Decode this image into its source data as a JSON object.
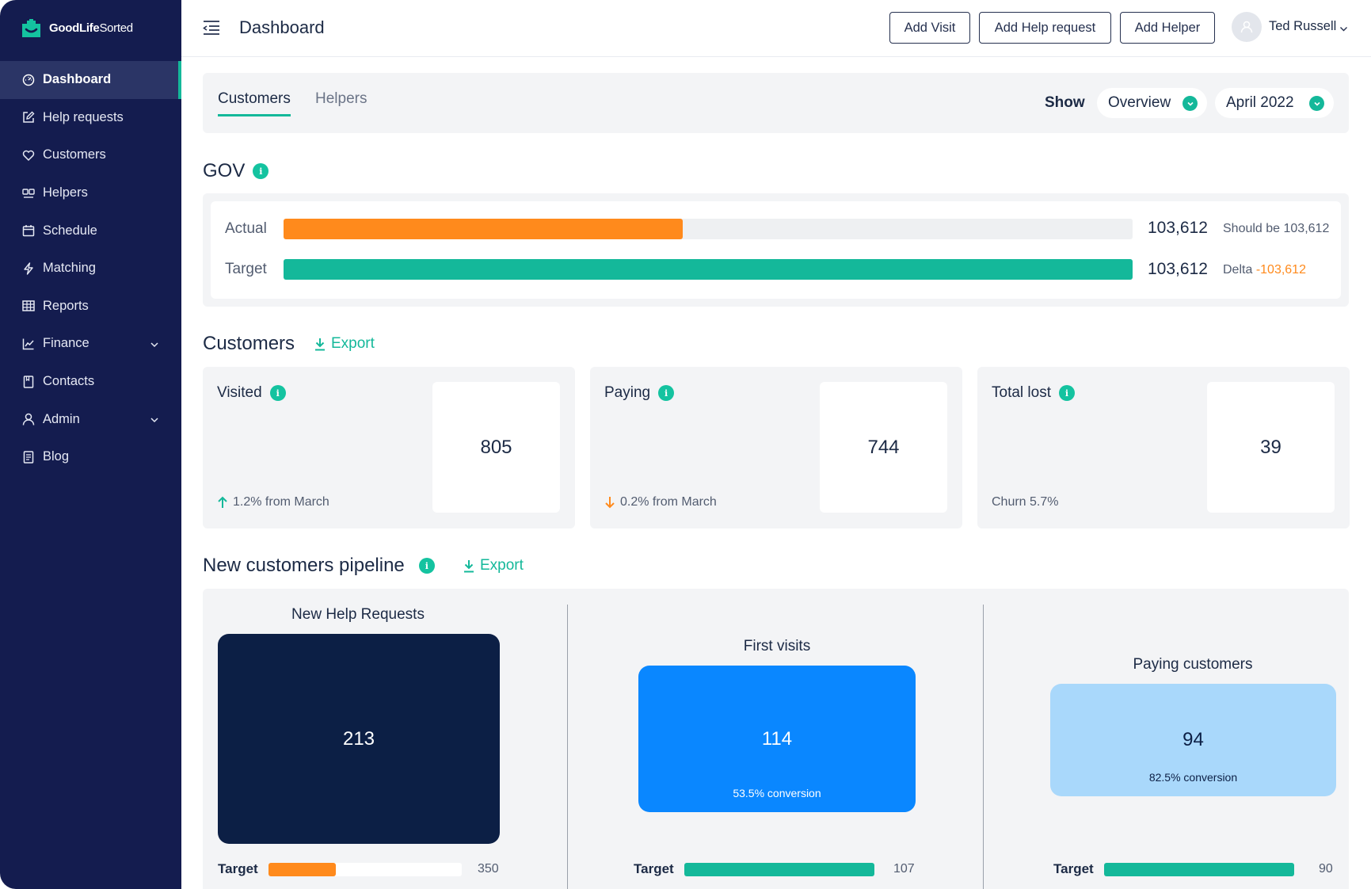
{
  "colors": {
    "sidebar": "#141c4f",
    "accent": "#14b89a",
    "orange": "#ff8a1c",
    "navy": "#0c1f45",
    "blue": "#0a87ff",
    "light_blue": "#a9d8fb"
  },
  "brand": {
    "name_bold": "GoodLife",
    "name_rest": "Sorted"
  },
  "sidebar": {
    "items": [
      {
        "label": "Dashboard",
        "icon": "dashboard-icon",
        "active": true
      },
      {
        "label": "Help requests",
        "icon": "edit-icon"
      },
      {
        "label": "Customers",
        "icon": "heart-icon"
      },
      {
        "label": "Helpers",
        "icon": "helpers-icon"
      },
      {
        "label": "Schedule",
        "icon": "calendar-icon"
      },
      {
        "label": "Matching",
        "icon": "lightning-icon"
      },
      {
        "label": "Reports",
        "icon": "table-icon"
      },
      {
        "label": "Finance",
        "icon": "chart-icon",
        "expandable": true
      },
      {
        "label": "Contacts",
        "icon": "contacts-icon"
      },
      {
        "label": "Admin",
        "icon": "user-icon",
        "expandable": true
      },
      {
        "label": "Blog",
        "icon": "blog-icon"
      }
    ]
  },
  "header": {
    "title": "Dashboard",
    "buttons": {
      "add_visit": "Add Visit",
      "add_help_request": "Add Help request",
      "add_helper": "Add Helper"
    },
    "user_name": "Ted Russell"
  },
  "tabs": {
    "items": [
      "Customers",
      "Helpers"
    ],
    "show_label": "Show",
    "view_select": "Overview",
    "period_select": "April 2022"
  },
  "gov": {
    "title": "GOV",
    "actual": {
      "label": "Actual",
      "value": "103,612",
      "note": "Should be 103,612",
      "fill": 0.47
    },
    "target": {
      "label": "Target",
      "value": "103,612",
      "note_prefix": "Delta",
      "delta": "-103,612",
      "fill": 1.0
    }
  },
  "customers": {
    "title": "Customers",
    "export_label": "Export",
    "cards": [
      {
        "title": "Visited",
        "value": "805",
        "trend": "up",
        "footer": "1.2% from March"
      },
      {
        "title": "Paying",
        "value": "744",
        "trend": "down",
        "footer": "0.2% from March"
      },
      {
        "title": "Total lost",
        "value": "39",
        "trend": "none",
        "footer": "Churn 5.7%"
      }
    ]
  },
  "pipeline": {
    "title": "New customers pipeline",
    "export_label": "Export",
    "target_label": "Target",
    "stages": [
      {
        "label": "New Help Requests",
        "value": "213",
        "conversion": "",
        "target": "350",
        "target_fill": 0.35
      },
      {
        "label": "First visits",
        "value": "114",
        "conversion": "53.5% conversion",
        "target": "107",
        "target_fill": 1.0
      },
      {
        "label": "Paying customers",
        "value": "94",
        "conversion": "82.5% conversion",
        "target": "90",
        "target_fill": 1.0
      }
    ]
  }
}
